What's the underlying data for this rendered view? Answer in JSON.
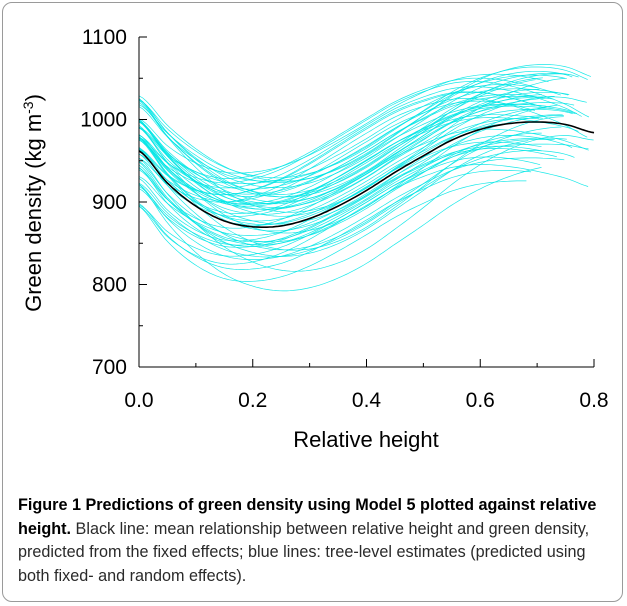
{
  "chart_data": {
    "type": "line",
    "xlabel": "Relative height",
    "ylabel_main": "Green density (kg m",
    "ylabel_sup": "-3",
    "ylabel_close": ")",
    "xlim": [
      0.0,
      0.8
    ],
    "ylim": [
      700,
      1100
    ],
    "x_ticks": [
      0.0,
      0.2,
      0.4,
      0.6,
      0.8
    ],
    "x_tick_labels": [
      "0.0",
      "0.2",
      "0.4",
      "0.6",
      "0.8"
    ],
    "y_ticks": [
      700,
      800,
      900,
      1000,
      1100
    ],
    "y_tick_labels": [
      "700",
      "800",
      "900",
      "1000",
      "1100"
    ],
    "grid": false,
    "legend": "none",
    "series": [
      {
        "role": "mean (fixed effects)",
        "color": "#000000",
        "x": [
          0.0,
          0.05,
          0.1,
          0.15,
          0.2,
          0.25,
          0.3,
          0.35,
          0.4,
          0.45,
          0.5,
          0.55,
          0.6,
          0.65,
          0.7,
          0.75,
          0.8
        ],
        "y": [
          962,
          923,
          895,
          877,
          870,
          871,
          880,
          895,
          914,
          936,
          956,
          975,
          988,
          995,
          997,
          994,
          984
        ]
      },
      {
        "role": "tree-level estimates (fixed + random effects)",
        "color": "#00E5E5",
        "count": 60,
        "x": [
          0.0,
          0.2,
          0.4,
          0.6,
          0.7,
          0.8
        ],
        "y_range_envelope": {
          "min": [
            880,
            750,
            800,
            900,
            930,
            930
          ],
          "max": [
            1060,
            965,
            985,
            1040,
            1080,
            1070
          ]
        }
      }
    ]
  },
  "caption": {
    "title": "Figure 1 Predictions of green density using Model 5 plotted against relative height.",
    "body": " Black line: mean relationship between relative height and green density, predicted from the fixed effects; blue lines: tree-level estimates (predicted using both fixed- and random effects)."
  },
  "colors": {
    "mean_line": "#000000",
    "tree_lines": "#00E5E5",
    "frame_border": "#9a9a9a"
  }
}
